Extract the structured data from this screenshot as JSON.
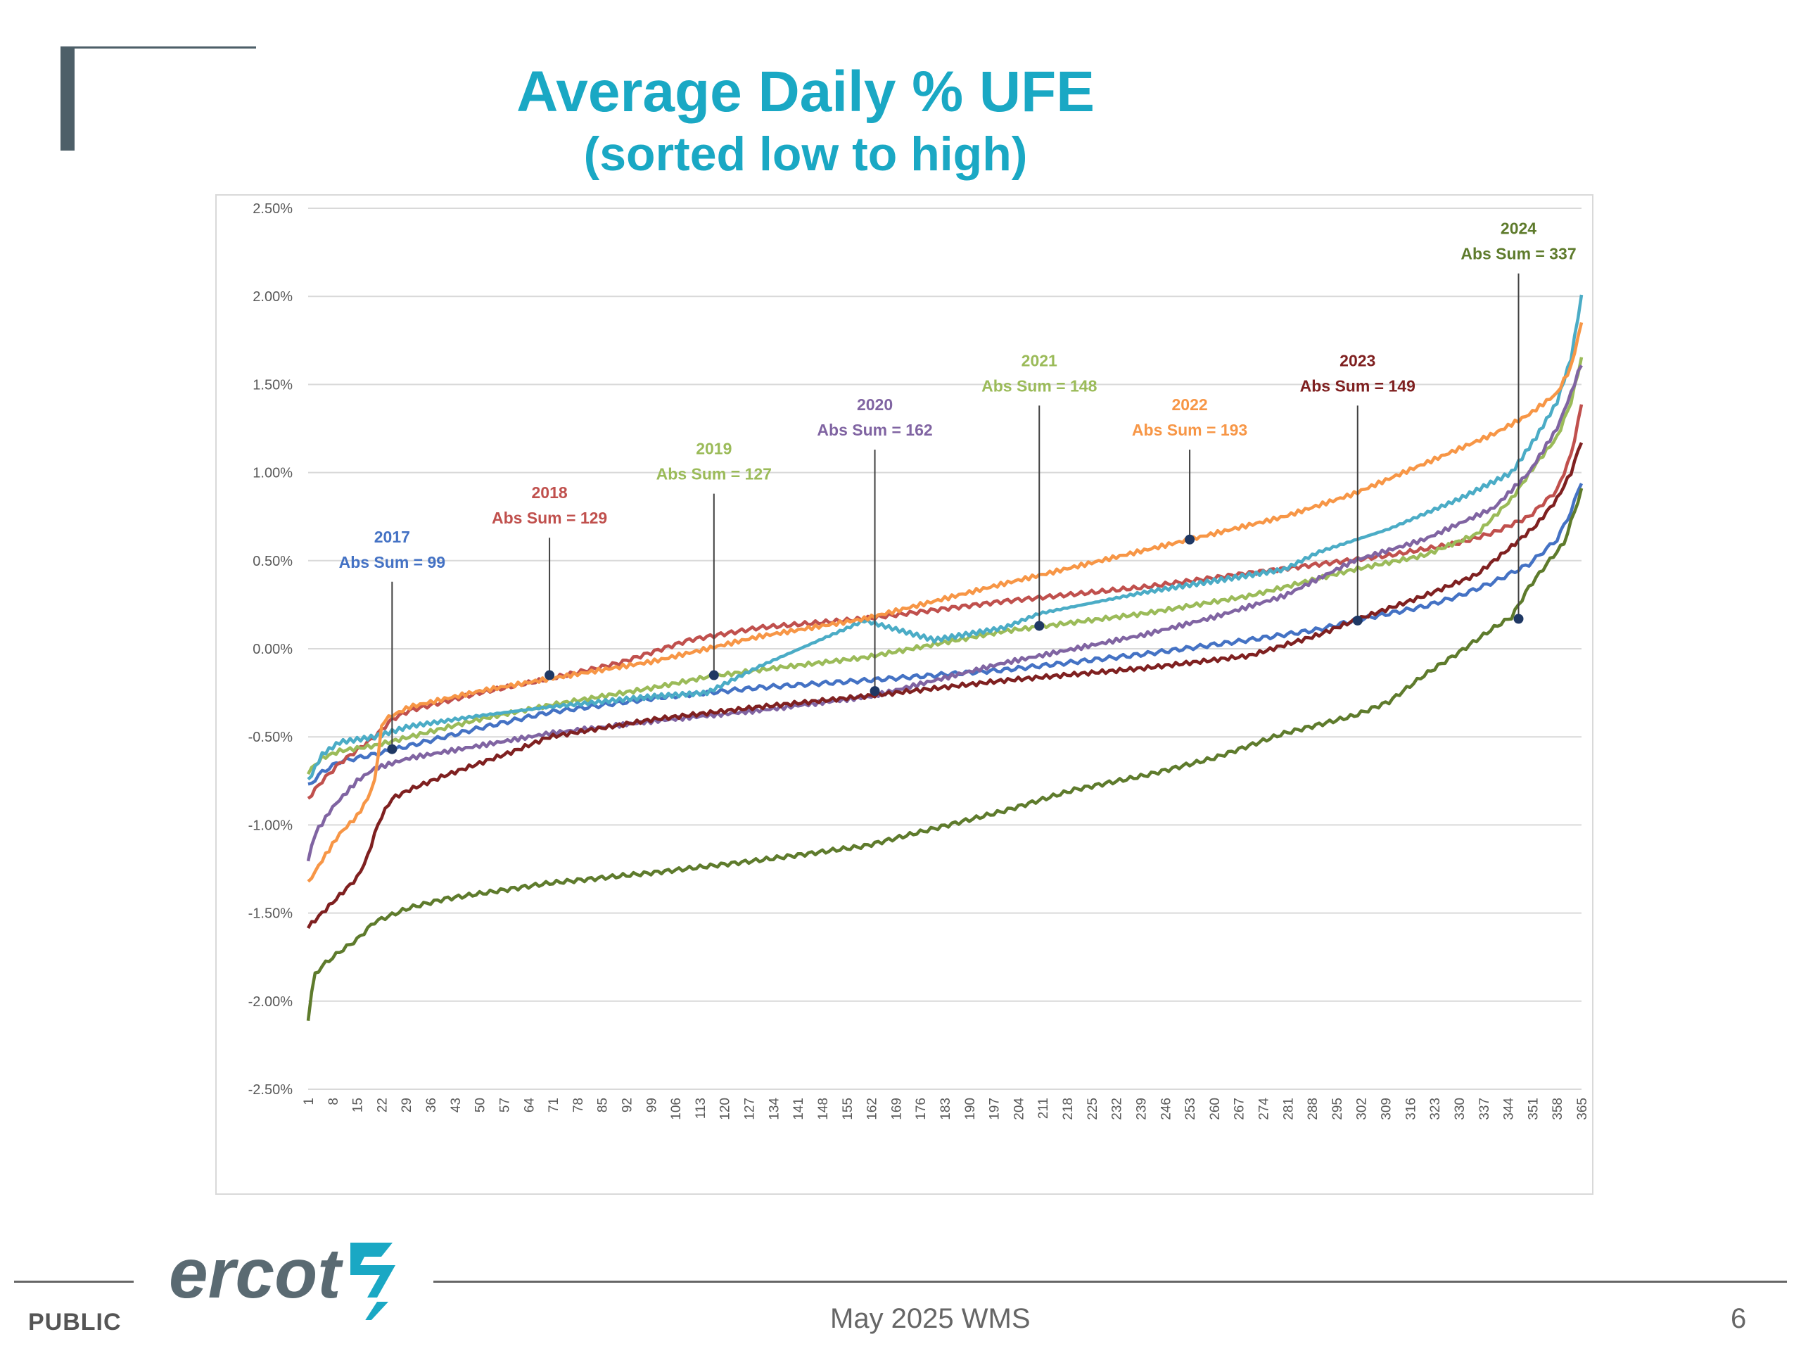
{
  "slide": {
    "title": "Average Daily % UFE",
    "subtitle": "(sorted low to high)",
    "footer_left": "PUBLIC",
    "footer_center": "May 2025 WMS",
    "page_number": "6",
    "logo_text": "ercot"
  },
  "chart_data": {
    "type": "line",
    "title": "",
    "xlabel": "",
    "ylabel": "",
    "xlim": [
      1,
      365
    ],
    "ylim": [
      -2.5,
      2.5
    ],
    "y_tick_labels": [
      "2.50%",
      "2.00%",
      "1.50%",
      "1.00%",
      "0.50%",
      "0.00%",
      "-0.50%",
      "-1.00%",
      "-1.50%",
      "-2.00%",
      "-2.50%"
    ],
    "y_tick_values": [
      2.5,
      2.0,
      1.5,
      1.0,
      0.5,
      0.0,
      -0.5,
      -1.0,
      -1.5,
      -2.0,
      -2.5
    ],
    "x_tick_labels": [
      "1",
      "8",
      "15",
      "22",
      "29",
      "36",
      "43",
      "50",
      "57",
      "64",
      "71",
      "78",
      "85",
      "92",
      "99",
      "106",
      "113",
      "120",
      "127",
      "134",
      "141",
      "148",
      "155",
      "162",
      "169",
      "176",
      "183",
      "190",
      "197",
      "204",
      "211",
      "218",
      "225",
      "232",
      "239",
      "246",
      "253",
      "260",
      "267",
      "274",
      "281",
      "288",
      "295",
      "302",
      "309",
      "316",
      "323",
      "330",
      "337",
      "344",
      "351",
      "358",
      "365"
    ],
    "grid": true,
    "legend": "none",
    "series": [
      {
        "name": "2017",
        "color": "#4472c4",
        "x": [
          1,
          5,
          10,
          20,
          30,
          50,
          70,
          100,
          130,
          160,
          200,
          240,
          270,
          290,
          300,
          310,
          320,
          330,
          340,
          350,
          358,
          362,
          365
        ],
        "y": [
          -0.78,
          -0.7,
          -0.64,
          -0.6,
          -0.55,
          -0.45,
          -0.36,
          -0.28,
          -0.22,
          -0.18,
          -0.12,
          -0.03,
          0.05,
          0.11,
          0.16,
          0.2,
          0.24,
          0.3,
          0.38,
          0.48,
          0.62,
          0.78,
          0.95
        ]
      },
      {
        "name": "2018",
        "color": "#c0504d",
        "x": [
          1,
          5,
          10,
          20,
          25,
          30,
          50,
          70,
          90,
          110,
          130,
          160,
          200,
          240,
          270,
          290,
          310,
          330,
          340,
          350,
          358,
          362,
          365
        ],
        "y": [
          -0.85,
          -0.75,
          -0.65,
          -0.5,
          -0.4,
          -0.35,
          -0.25,
          -0.17,
          -0.08,
          0.05,
          0.12,
          0.17,
          0.27,
          0.35,
          0.43,
          0.48,
          0.53,
          0.6,
          0.66,
          0.75,
          0.9,
          1.1,
          1.38
        ]
      },
      {
        "name": "2019",
        "color": "#9bbb59",
        "x": [
          1,
          5,
          10,
          20,
          30,
          50,
          70,
          100,
          115,
          130,
          160,
          200,
          240,
          270,
          300,
          320,
          335,
          345,
          352,
          358,
          362,
          365
        ],
        "y": [
          -0.7,
          -0.62,
          -0.58,
          -0.55,
          -0.5,
          -0.4,
          -0.32,
          -0.22,
          -0.16,
          -0.12,
          -0.05,
          0.1,
          0.2,
          0.3,
          0.45,
          0.53,
          0.65,
          0.85,
          1.05,
          1.2,
          1.4,
          1.65
        ]
      },
      {
        "name": "2020",
        "color": "#8064a2",
        "x": [
          1,
          3,
          8,
          15,
          20,
          30,
          50,
          70,
          100,
          130,
          162,
          180,
          200,
          220,
          240,
          260,
          280,
          290,
          300,
          320,
          340,
          350,
          358,
          362,
          365
        ],
        "y": [
          -1.2,
          -1.05,
          -0.9,
          -0.75,
          -0.68,
          -0.62,
          -0.55,
          -0.48,
          -0.41,
          -0.35,
          -0.27,
          -0.18,
          -0.08,
          0.0,
          0.08,
          0.18,
          0.3,
          0.4,
          0.5,
          0.62,
          0.8,
          1.0,
          1.25,
          1.45,
          1.62
        ]
      },
      {
        "name": "2021",
        "color": "#4bacc6",
        "x": [
          1,
          5,
          10,
          20,
          30,
          50,
          70,
          100,
          115,
          130,
          160,
          180,
          200,
          210,
          240,
          280,
          290,
          310,
          330,
          345,
          352,
          358,
          362,
          365
        ],
        "y": [
          -0.75,
          -0.6,
          -0.53,
          -0.5,
          -0.44,
          -0.38,
          -0.33,
          -0.27,
          -0.25,
          -0.1,
          0.16,
          0.05,
          0.12,
          0.2,
          0.32,
          0.45,
          0.55,
          0.68,
          0.85,
          1.0,
          1.2,
          1.4,
          1.65,
          2.0
        ]
      },
      {
        "name": "2022",
        "color": "#f79646",
        "x": [
          1,
          5,
          10,
          15,
          18,
          20,
          21,
          22,
          23,
          30,
          50,
          70,
          100,
          130,
          160,
          200,
          253,
          280,
          300,
          320,
          340,
          350,
          358,
          362,
          365
        ],
        "y": [
          -1.33,
          -1.2,
          -1.05,
          -0.95,
          -0.85,
          -0.75,
          -0.6,
          -0.45,
          -0.4,
          -0.33,
          -0.24,
          -0.17,
          -0.07,
          0.07,
          0.17,
          0.37,
          0.62,
          0.75,
          0.88,
          1.05,
          1.22,
          1.33,
          1.45,
          1.6,
          1.85
        ]
      },
      {
        "name": "2023",
        "color": "#7f2020",
        "x": [
          1,
          5,
          10,
          15,
          18,
          20,
          22,
          25,
          30,
          40,
          50,
          60,
          70,
          100,
          130,
          160,
          200,
          240,
          270,
          290,
          300,
          320,
          335,
          345,
          352,
          358,
          362,
          365
        ],
        "y": [
          -1.58,
          -1.5,
          -1.4,
          -1.3,
          -1.18,
          -1.05,
          -0.95,
          -0.85,
          -0.8,
          -0.72,
          -0.65,
          -0.58,
          -0.5,
          -0.4,
          -0.33,
          -0.27,
          -0.18,
          -0.11,
          -0.04,
          0.08,
          0.16,
          0.3,
          0.42,
          0.58,
          0.7,
          0.85,
          1.0,
          1.18
        ]
      },
      {
        "name": "2024",
        "color": "#5e7b2c",
        "x": [
          1,
          2,
          3,
          5,
          10,
          15,
          20,
          30,
          40,
          50,
          70,
          100,
          130,
          160,
          180,
          200,
          220,
          240,
          260,
          280,
          300,
          310,
          320,
          330,
          340,
          345,
          350,
          355,
          360,
          363,
          365
        ],
        "y": [
          -2.1,
          -1.95,
          -1.85,
          -1.8,
          -1.72,
          -1.65,
          -1.55,
          -1.47,
          -1.42,
          -1.39,
          -1.33,
          -1.27,
          -1.2,
          -1.12,
          -1.02,
          -0.92,
          -0.8,
          -0.72,
          -0.62,
          -0.48,
          -0.38,
          -0.3,
          -0.15,
          -0.02,
          0.12,
          0.18,
          0.35,
          0.48,
          0.6,
          0.78,
          0.9
        ]
      }
    ],
    "annotations": [
      {
        "year": "2017",
        "text": "Abs Sum = 99",
        "color": "#4472c4",
        "x": 25,
        "y": -0.57,
        "label_y": 0.5
      },
      {
        "year": "2018",
        "text": "Abs Sum = 129",
        "color": "#c0504d",
        "x": 70,
        "y": -0.15,
        "label_y": 0.75
      },
      {
        "year": "2019",
        "text": "Abs Sum = 127",
        "color": "#9bbb59",
        "x": 117,
        "y": -0.15,
        "label_y": 1.0
      },
      {
        "year": "2020",
        "text": "Abs Sum = 162",
        "color": "#8064a2",
        "x": 163,
        "y": -0.24,
        "label_y": 1.25
      },
      {
        "year": "2021",
        "text": "Abs Sum = 148",
        "color": "#9bbb59",
        "x": 210,
        "y": 0.13,
        "label_y": 1.5
      },
      {
        "year": "2022",
        "text": "Abs Sum = 193",
        "color": "#f79646",
        "x": 253,
        "y": 0.62,
        "label_y": 1.25
      },
      {
        "year": "2023",
        "text": "Abs Sum = 149",
        "color": "#7f2020",
        "x": 301,
        "y": 0.16,
        "label_y": 1.5
      },
      {
        "year": "2024",
        "text": "Abs Sum = 337",
        "color": "#5e7b2c",
        "x": 347,
        "y": 0.17,
        "label_y": 2.25
      }
    ]
  }
}
